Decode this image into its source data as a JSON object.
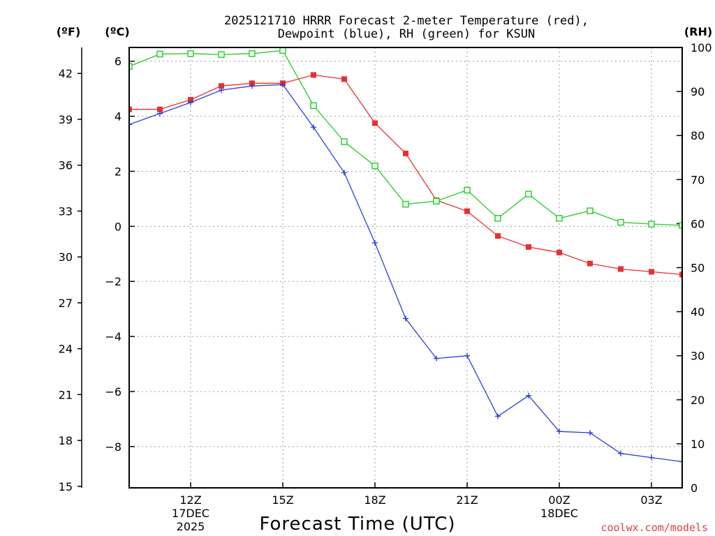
{
  "chart_data": {
    "type": "line",
    "title_line1": "2025121710 HRRR Forecast 2-meter Temperature (red),",
    "title_line2": "Dewpoint (blue), RH (green) for KSUN",
    "xlabel": "Forecast Time (UTC)",
    "left_unit_f": "(ºF)",
    "left_unit_c": "(ºC)",
    "right_unit": "(RH)",
    "credit": "coolwx.com/models",
    "x_range": [
      10,
      28
    ],
    "x": [
      10,
      11,
      12,
      13,
      14,
      15,
      16,
      17,
      18,
      19,
      20,
      21,
      22,
      23,
      24,
      25,
      26,
      27,
      28
    ],
    "x_ticks": [
      {
        "x": 12,
        "label": "12Z",
        "sub1": "17DEC",
        "sub2": "2025"
      },
      {
        "x": 15,
        "label": "15Z",
        "sub1": "",
        "sub2": ""
      },
      {
        "x": 18,
        "label": "18Z",
        "sub1": "",
        "sub2": ""
      },
      {
        "x": 21,
        "label": "21Z",
        "sub1": "",
        "sub2": ""
      },
      {
        "x": 24,
        "label": "00Z",
        "sub1": "18DEC",
        "sub2": ""
      },
      {
        "x": 27,
        "label": "03Z",
        "sub1": "",
        "sub2": ""
      }
    ],
    "celsius_range": [
      -9.5,
      6.5
    ],
    "celsius_ticks": [
      "6",
      "4",
      "2",
      "0",
      "−2",
      "−4",
      "−6",
      "−8"
    ],
    "celsius_tick_values": [
      6,
      4,
      2,
      0,
      -2,
      -4,
      -6,
      -8
    ],
    "fahrenheit_ticks": [
      "42",
      "39",
      "36",
      "33",
      "30",
      "27",
      "24",
      "21",
      "18",
      "15"
    ],
    "fahrenheit_tick_values": [
      42,
      39,
      36,
      33,
      30,
      27,
      24,
      21,
      18,
      15
    ],
    "rh_range": [
      0,
      100
    ],
    "rh_ticks": [
      "100",
      "90",
      "80",
      "70",
      "60",
      "50",
      "40",
      "30",
      "20",
      "10",
      "0"
    ],
    "rh_tick_values": [
      100,
      90,
      80,
      70,
      60,
      50,
      40,
      30,
      20,
      10,
      0
    ],
    "series": [
      {
        "name": "Temperature",
        "axis": "C",
        "color": "#e83030",
        "marker": "filled-square",
        "values": [
          4.25,
          4.25,
          4.6,
          5.1,
          5.2,
          5.2,
          5.5,
          5.35,
          3.75,
          2.65,
          0.95,
          0.55,
          -0.35,
          -0.75,
          -0.95,
          -1.35,
          -1.55,
          -1.65,
          -1.75
        ]
      },
      {
        "name": "Dewpoint",
        "axis": "C",
        "color": "#2b3fe0",
        "marker": "plus",
        "values": [
          3.7,
          4.1,
          4.5,
          4.95,
          5.1,
          5.15,
          3.6,
          1.95,
          -0.6,
          -3.35,
          -4.8,
          -4.7,
          -6.9,
          -6.15,
          -7.45,
          -7.5,
          -8.25,
          -8.4,
          -8.55
        ]
      },
      {
        "name": "RH",
        "axis": "RH",
        "color": "#22cc22",
        "marker": "open-square",
        "values": [
          95.7,
          98.5,
          98.6,
          98.4,
          98.6,
          99.3,
          86.8,
          78.6,
          73.1,
          64.4,
          65.1,
          67.6,
          61.2,
          66.7,
          61.2,
          62.9,
          60.3,
          59.9,
          59.6
        ]
      }
    ]
  }
}
